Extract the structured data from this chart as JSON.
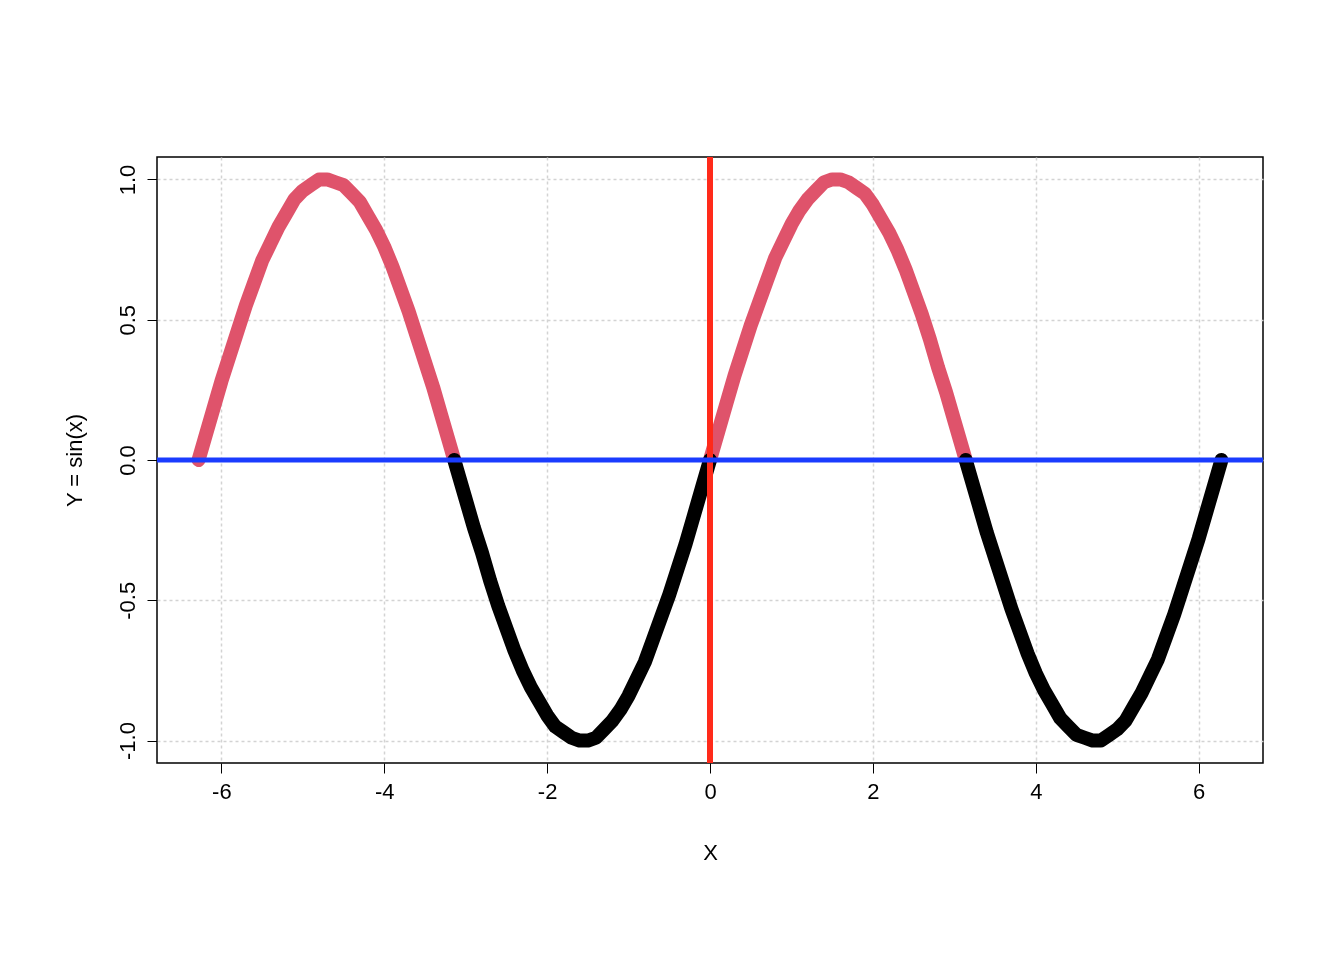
{
  "chart_data": {
    "type": "line",
    "xlabel": "X",
    "ylabel": "Y = sin(x)",
    "x": [
      -6.28,
      -6.2,
      -6.1,
      -6.0,
      -5.9,
      -5.8,
      -5.7,
      -5.6,
      -5.5,
      -5.4,
      -5.3,
      -5.2,
      -5.1,
      -5.0,
      -4.9,
      -4.8,
      -4.7,
      -4.6,
      -4.5,
      -4.4,
      -4.3,
      -4.2,
      -4.1,
      -4.0,
      -3.9,
      -3.8,
      -3.7,
      -3.6,
      -3.5,
      -3.4,
      -3.3,
      -3.2,
      -3.14,
      -3.1,
      -3.0,
      -2.9,
      -2.8,
      -2.7,
      -2.6,
      -2.5,
      -2.4,
      -2.3,
      -2.2,
      -2.1,
      -2.0,
      -1.9,
      -1.8,
      -1.7,
      -1.6,
      -1.5,
      -1.4,
      -1.3,
      -1.2,
      -1.1,
      -1.0,
      -0.9,
      -0.8,
      -0.7,
      -0.6,
      -0.5,
      -0.4,
      -0.3,
      -0.2,
      -0.1,
      0,
      0.1,
      0.2,
      0.3,
      0.4,
      0.5,
      0.6,
      0.7,
      0.8,
      0.9,
      1.0,
      1.1,
      1.2,
      1.3,
      1.4,
      1.5,
      1.6,
      1.7,
      1.8,
      1.9,
      2.0,
      2.1,
      2.2,
      2.3,
      2.4,
      2.5,
      2.6,
      2.7,
      2.8,
      2.9,
      3.0,
      3.1,
      3.14,
      3.2,
      3.3,
      3.4,
      3.5,
      3.6,
      3.7,
      3.8,
      3.9,
      4.0,
      4.1,
      4.2,
      4.3,
      4.4,
      4.5,
      4.6,
      4.7,
      4.8,
      4.9,
      5.0,
      5.1,
      5.2,
      5.3,
      5.4,
      5.5,
      5.6,
      5.7,
      5.8,
      5.9,
      6.0,
      6.1,
      6.2,
      6.28
    ],
    "series": [
      {
        "color": "#df536b",
        "values": [
          0,
          0.08,
          0.18,
          0.28,
          0.37,
          0.46,
          0.55,
          0.63,
          0.71,
          0.77,
          0.83,
          0.88,
          0.93,
          0.96,
          0.98,
          1.0,
          1.0,
          0.99,
          0.98,
          0.95,
          0.92,
          0.87,
          0.82,
          0.76,
          0.69,
          0.61,
          0.53,
          0.44,
          0.35,
          0.26,
          0.16,
          0.06,
          0,
          null,
          null,
          null,
          null,
          null,
          null,
          null,
          null,
          null,
          null,
          null,
          null,
          null,
          null,
          null,
          null,
          null,
          null,
          null,
          null,
          null,
          null,
          null,
          null,
          null,
          null,
          null,
          null,
          null,
          null,
          null,
          0,
          0.1,
          0.2,
          0.3,
          0.39,
          0.48,
          0.56,
          0.64,
          0.72,
          0.78,
          0.84,
          0.89,
          0.93,
          0.96,
          0.99,
          1.0,
          1.0,
          0.99,
          0.97,
          0.95,
          0.91,
          0.86,
          0.81,
          0.75,
          0.68,
          0.6,
          0.52,
          0.43,
          0.33,
          0.24,
          0.14,
          0.04,
          0,
          null,
          null,
          null,
          null,
          null,
          null,
          null,
          null,
          null,
          null,
          null,
          null,
          null,
          null,
          null,
          null,
          null,
          null,
          null,
          null,
          null,
          null,
          null,
          null,
          null,
          null,
          null,
          null,
          null,
          null,
          null,
          null
        ]
      },
      {
        "color": "#000000",
        "values": [
          null,
          null,
          null,
          null,
          null,
          null,
          null,
          null,
          null,
          null,
          null,
          null,
          null,
          null,
          null,
          null,
          null,
          null,
          null,
          null,
          null,
          null,
          null,
          null,
          null,
          null,
          null,
          null,
          null,
          null,
          null,
          null,
          0,
          -0.04,
          -0.14,
          -0.24,
          -0.33,
          -0.43,
          -0.52,
          -0.6,
          -0.68,
          -0.75,
          -0.81,
          -0.86,
          -0.91,
          -0.95,
          -0.97,
          -0.99,
          -1.0,
          -1.0,
          -0.99,
          -0.96,
          -0.93,
          -0.89,
          -0.84,
          -0.78,
          -0.72,
          -0.64,
          -0.56,
          -0.48,
          -0.39,
          -0.3,
          -0.2,
          -0.1,
          0,
          null,
          null,
          null,
          null,
          null,
          null,
          null,
          null,
          null,
          null,
          null,
          null,
          null,
          null,
          null,
          null,
          null,
          null,
          null,
          null,
          null,
          null,
          null,
          null,
          null,
          null,
          null,
          null,
          null,
          null,
          null,
          0,
          -0.06,
          -0.16,
          -0.26,
          -0.35,
          -0.44,
          -0.53,
          -0.61,
          -0.69,
          -0.76,
          -0.82,
          -0.87,
          -0.92,
          -0.95,
          -0.98,
          -0.99,
          -1.0,
          -1.0,
          -0.98,
          -0.96,
          -0.93,
          -0.88,
          -0.83,
          -0.77,
          -0.71,
          -0.63,
          -0.55,
          -0.46,
          -0.37,
          -0.28,
          -0.18,
          -0.08,
          0
        ]
      }
    ],
    "xlim": [
      -6.79,
      6.79
    ],
    "ylim": [
      -1.08,
      1.08
    ],
    "xticks": [
      -6,
      -4,
      -2,
      0,
      2,
      4,
      6
    ],
    "yticks": [
      {
        "value": -1,
        "label": "-1.0"
      },
      {
        "value": -0.5,
        "label": "-0.5"
      },
      {
        "value": 0,
        "label": "0.0"
      },
      {
        "value": 0.5,
        "label": "0.5"
      },
      {
        "value": 1,
        "label": "1.0"
      }
    ],
    "grid": true,
    "line_style": "solid",
    "ref_lines": [
      {
        "axis": "x",
        "value": 0,
        "color": "#ff2a1a"
      },
      {
        "axis": "y",
        "value": 0,
        "color": "#1a3cff"
      }
    ]
  }
}
